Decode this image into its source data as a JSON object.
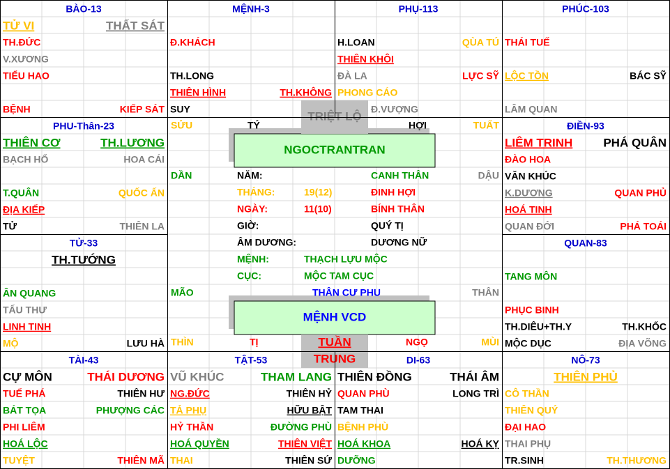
{
  "palaces": [
    {
      "title": "BÀO-13",
      "lines": [
        {
          "left": {
            "text": "TỬ VI",
            "color": "#ffc000",
            "underline": true,
            "big": true
          },
          "right": {
            "text": "THẤT SÁT",
            "color": "#808080",
            "underline": true,
            "big": true
          }
        },
        {
          "left": {
            "text": "TH.ĐỨC",
            "color": "#ff0000"
          }
        },
        {
          "left": {
            "text": "V.XƯƠNG",
            "color": "#808080"
          }
        },
        {
          "left": {
            "text": "TIỂU HAO",
            "color": "#ff0000"
          }
        },
        {},
        {
          "left": {
            "text": "BỆNH",
            "color": "#ff0000"
          },
          "right": {
            "text": "KIẾP SÁT",
            "color": "#ff0000"
          }
        }
      ]
    },
    {
      "title": "MỆNH-3",
      "lines": [
        {},
        {
          "left": {
            "text": "Đ.KHÁCH",
            "color": "#ff0000"
          }
        },
        {},
        {
          "left": {
            "text": "TH.LONG",
            "color": "#000000"
          }
        },
        {
          "left": {
            "text": "THIÊN HÌNH",
            "color": "#ff0000",
            "underline": true
          },
          "right": {
            "text": "TH.KHÔNG",
            "color": "#ff0000",
            "underline": true
          }
        },
        {
          "left": {
            "text": "SUY",
            "color": "#000000"
          }
        }
      ]
    },
    {
      "title": "PHỤ-113",
      "lines": [
        {},
        {
          "left": {
            "text": "H.LOAN",
            "color": "#000000"
          },
          "right": {
            "text": "QÙA TÚ",
            "color": "#ffc000"
          }
        },
        {
          "left": {
            "text": "THIÊN KHÔI",
            "color": "#ff0000",
            "underline": true
          }
        },
        {
          "left": {
            "text": "ĐÀ LA",
            "color": "#808080"
          },
          "right": {
            "text": "LỰC SỸ",
            "color": "#ff0000"
          }
        },
        {
          "left": {
            "text": "PHONG CÁO",
            "color": "#ffc000"
          }
        },
        {
          "right": {
            "text": "Đ.VƯỢNG",
            "color": "#808080"
          }
        }
      ]
    },
    {
      "title": "PHÚC-103",
      "lines": [
        {},
        {
          "left": {
            "text": "THÁI TUẾ",
            "color": "#ff0000"
          }
        },
        {},
        {
          "left": {
            "text": "LỘC TỒN",
            "color": "#ffc000",
            "underline": true
          },
          "right": {
            "text": "BÁC SỸ",
            "color": "#000000"
          }
        },
        {},
        {
          "left": {
            "text": "LÂM QUAN",
            "color": "#808080"
          }
        }
      ]
    },
    {
      "title": "PHU-Thân-23",
      "lines": [
        {
          "left": {
            "text": "THIÊN CƠ",
            "color": "#009900",
            "underline": true,
            "big": true
          },
          "right": {
            "text": "TH.LƯƠNG",
            "color": "#009900",
            "underline": true,
            "big": true
          }
        },
        {
          "left": {
            "text": "BẠCH HỔ",
            "color": "#808080"
          },
          "right": {
            "text": "HOA CÁI",
            "color": "#808080"
          }
        },
        {},
        {
          "left": {
            "text": "T.QUÂN",
            "color": "#009900"
          },
          "right": {
            "text": "QUỐC ẤN",
            "color": "#ffc000"
          }
        },
        {
          "left": {
            "text": "ĐỊA KIẾP",
            "color": "#ff0000",
            "underline": true
          }
        },
        {
          "left": {
            "text": "TỬ",
            "color": "#000000"
          },
          "right": {
            "text": "THIÊN LA",
            "color": "#808080"
          }
        }
      ]
    },
    {
      "title": "ĐIỀN-93",
      "lines": [
        {
          "left": {
            "text": "LIÊM TRINH",
            "color": "#ff0000",
            "underline": true,
            "big": true
          },
          "right": {
            "text": "PHÁ QUÂN",
            "color": "#000000",
            "big": true
          }
        },
        {
          "left": {
            "text": "ĐÀO HOA",
            "color": "#ff0000"
          }
        },
        {
          "left": {
            "text": "VĂN KHÚC",
            "color": "#000000"
          }
        },
        {
          "left": {
            "text": "K.DƯƠNG",
            "color": "#808080",
            "underline": true
          },
          "right": {
            "text": "QUAN PHỦ",
            "color": "#ff0000"
          }
        },
        {
          "left": {
            "text": "HOÁ TINH",
            "color": "#ff0000",
            "underline": true
          }
        },
        {
          "left": {
            "text": "QUAN ĐỚI",
            "color": "#808080"
          },
          "right": {
            "text": "PHÁ TOÁI",
            "color": "#ff0000"
          }
        }
      ]
    },
    {
      "title": "TỬ-33",
      "lines": [
        {
          "center": {
            "text": "TH.TƯỚNG",
            "color": "#000000",
            "underline": true,
            "big": true
          }
        },
        {},
        {
          "left": {
            "text": "ÂN QUANG",
            "color": "#009900"
          }
        },
        {
          "left": {
            "text": "TẤU THƯ",
            "color": "#808080"
          }
        },
        {
          "left": {
            "text": "LINH TINH",
            "color": "#ff0000",
            "underline": true
          }
        },
        {
          "left": {
            "text": "MỘ",
            "color": "#ffc000"
          },
          "right": {
            "text": "LƯU HÀ",
            "color": "#000000"
          }
        }
      ]
    },
    {
      "title": "QUAN-83",
      "lines": [
        {},
        {
          "left": {
            "text": "TANG MÔN",
            "color": "#009900"
          }
        },
        {},
        {
          "left": {
            "text": "PHỤC BINH",
            "color": "#ff0000"
          }
        },
        {
          "left": {
            "text": "TH.DIÊU+TH.Y",
            "color": "#000000"
          },
          "right": {
            "text": "TH.KHỐC",
            "color": "#000000"
          }
        },
        {
          "left": {
            "text": "MỘC DỤC",
            "color": "#000000"
          },
          "right": {
            "text": "ĐỊA VÕNG",
            "color": "#808080"
          }
        }
      ]
    },
    {
      "title": "TÀI-43",
      "lines": [
        {
          "left": {
            "text": "CỰ MÔN",
            "color": "#000000",
            "big": true
          },
          "right": {
            "text": "THÁI DƯƠNG",
            "color": "#ff0000",
            "big": true
          }
        },
        {
          "left": {
            "text": "TUẾ PHÁ",
            "color": "#ff0000"
          },
          "right": {
            "text": "THIÊN HƯ",
            "color": "#000000"
          }
        },
        {
          "left": {
            "text": "BÁT TỌA",
            "color": "#009900"
          },
          "right": {
            "text": "PHƯỢNG CÁC",
            "color": "#009900"
          }
        },
        {
          "left": {
            "text": "PHI LIÊM",
            "color": "#ff0000"
          }
        },
        {
          "left": {
            "text": "HOÁ LỘC",
            "color": "#009900",
            "underline": true
          }
        },
        {
          "left": {
            "text": "TUYỆT",
            "color": "#ffc000"
          },
          "right": {
            "text": "THIÊN MÃ",
            "color": "#ff0000"
          }
        }
      ]
    },
    {
      "title": "TẬT-53",
      "lines": [
        {
          "left": {
            "text": "VŨ KHÚC",
            "color": "#808080",
            "big": true
          },
          "right": {
            "text": "THAM LANG",
            "color": "#009900",
            "big": true
          }
        },
        {
          "left": {
            "text": "NG.ĐỨC",
            "color": "#ff0000",
            "underline": true
          },
          "right": {
            "text": "THIÊN HỶ",
            "color": "#000000"
          }
        },
        {
          "left": {
            "text": "TẢ PHỤ",
            "color": "#ffc000",
            "underline": true
          },
          "right": {
            "text": "HỮU BẬT",
            "color": "#000000",
            "underline": true
          }
        },
        {
          "left": {
            "text": "HỶ THẦN",
            "color": "#ff0000"
          },
          "right": {
            "text": "ĐƯỜNG PHÙ",
            "color": "#009900"
          }
        },
        {
          "left": {
            "text": "HOÁ QUYỀN",
            "color": "#009900",
            "underline": true
          },
          "right": {
            "text": "THIÊN VIỆT",
            "color": "#ff0000",
            "underline": true
          }
        },
        {
          "left": {
            "text": "THAI",
            "color": "#ffc000"
          },
          "right": {
            "text": "THIÊN SỨ",
            "color": "#000000"
          }
        }
      ]
    },
    {
      "title": "DI-63",
      "lines": [
        {
          "left": {
            "text": "THIÊN ĐỒNG",
            "color": "#000000",
            "big": true
          },
          "right": {
            "text": "THÁI ÂM",
            "color": "#000000",
            "big": true
          }
        },
        {
          "left": {
            "text": "QUAN PHÙ",
            "color": "#ff0000"
          },
          "right": {
            "text": "LONG TRÌ",
            "color": "#000000"
          }
        },
        {
          "left": {
            "text": "TAM THAI",
            "color": "#000000"
          }
        },
        {
          "left": {
            "text": "BỆNH PHÙ",
            "color": "#ffc000"
          }
        },
        {
          "left": {
            "text": "HOÁ KHOA",
            "color": "#009900",
            "underline": true
          },
          "right": {
            "text": "HOÁ KỴ",
            "color": "#000000",
            "underline": true
          }
        },
        {
          "left": {
            "text": "DƯỠNG",
            "color": "#009900"
          }
        }
      ]
    },
    {
      "title": "NÔ-73",
      "lines": [
        {
          "center": {
            "text": "THIÊN PHỦ",
            "color": "#ffc000",
            "underline": true,
            "big": true
          }
        },
        {
          "left": {
            "text": "CÔ THẦN",
            "color": "#ffc000"
          }
        },
        {
          "left": {
            "text": "THIÊN QUÝ",
            "color": "#ffc000"
          }
        },
        {
          "left": {
            "text": "ĐẠI HAO",
            "color": "#ff0000"
          }
        },
        {
          "left": {
            "text": "THAI PHỤ",
            "color": "#808080"
          }
        },
        {
          "left": {
            "text": "TR.SINH",
            "color": "#000000"
          },
          "right": {
            "text": "TH.THƯƠNG",
            "color": "#ffc000"
          }
        }
      ]
    }
  ],
  "branches": [
    {
      "text": "SỬU",
      "color": "#ffc000"
    },
    {
      "text": "TÝ",
      "color": "#000000"
    },
    {
      "text": "HỢI",
      "color": "#000000"
    },
    {
      "text": "TUẤT",
      "color": "#ffc000"
    },
    {
      "text": "DẦN",
      "color": "#009900"
    },
    {
      "text": "DẬU",
      "color": "#808080"
    },
    {
      "text": "MÃO",
      "color": "#009900"
    },
    {
      "text": "THÂN",
      "color": "#808080"
    },
    {
      "text": "THÌN",
      "color": "#ffc000"
    },
    {
      "text": "TỊ",
      "color": "#ff0000"
    },
    {
      "text": "NGỌ",
      "color": "#ff0000"
    },
    {
      "text": "MÙI",
      "color": "#ffc000"
    }
  ],
  "name": "NGOCTRANTRAN",
  "info": [
    {
      "a": {
        "text": "NĂM:",
        "color": "#000000"
      },
      "c": {
        "text": "CANH THÂN",
        "color": "#009900"
      }
    },
    {
      "a": {
        "text": "THÁNG:",
        "color": "#ffc000"
      },
      "b": {
        "text": "19(12)",
        "color": "#ffc000"
      },
      "c": {
        "text": "ĐINH HỢI",
        "color": "#ff0000"
      }
    },
    {
      "a": {
        "text": "NGÀY:",
        "color": "#ff0000"
      },
      "b": {
        "text": "11(10)",
        "color": "#ff0000"
      },
      "c": {
        "text": "BÍNH THÂN",
        "color": "#ff0000"
      }
    },
    {
      "a": {
        "text": "GIỜ:",
        "color": "#000000"
      },
      "c": {
        "text": "QUÝ TỊ",
        "color": "#000000"
      }
    },
    {
      "a": {
        "text": "ÂM DƯƠNG:",
        "color": "#000000"
      },
      "c": {
        "text": "DƯƠNG NỮ",
        "color": "#000000"
      }
    },
    {
      "a": {
        "text": "MỆNH:",
        "color": "#009900"
      },
      "b": {
        "text": "THẠCH LỰU MỘC",
        "color": "#009900"
      }
    },
    {
      "a": {
        "text": "CỤC:",
        "color": "#009900"
      },
      "b": {
        "text": "MỘC TAM CỤC",
        "color": "#009900"
      }
    },
    {
      "b": {
        "text": "THÂN CƯ PHU",
        "color": "#0000ff"
      }
    }
  ],
  "menh_box": "MỆNH VCD",
  "triet": "TRIỆT LỘ",
  "tuan": [
    "TUẦN",
    "TRUNG"
  ]
}
